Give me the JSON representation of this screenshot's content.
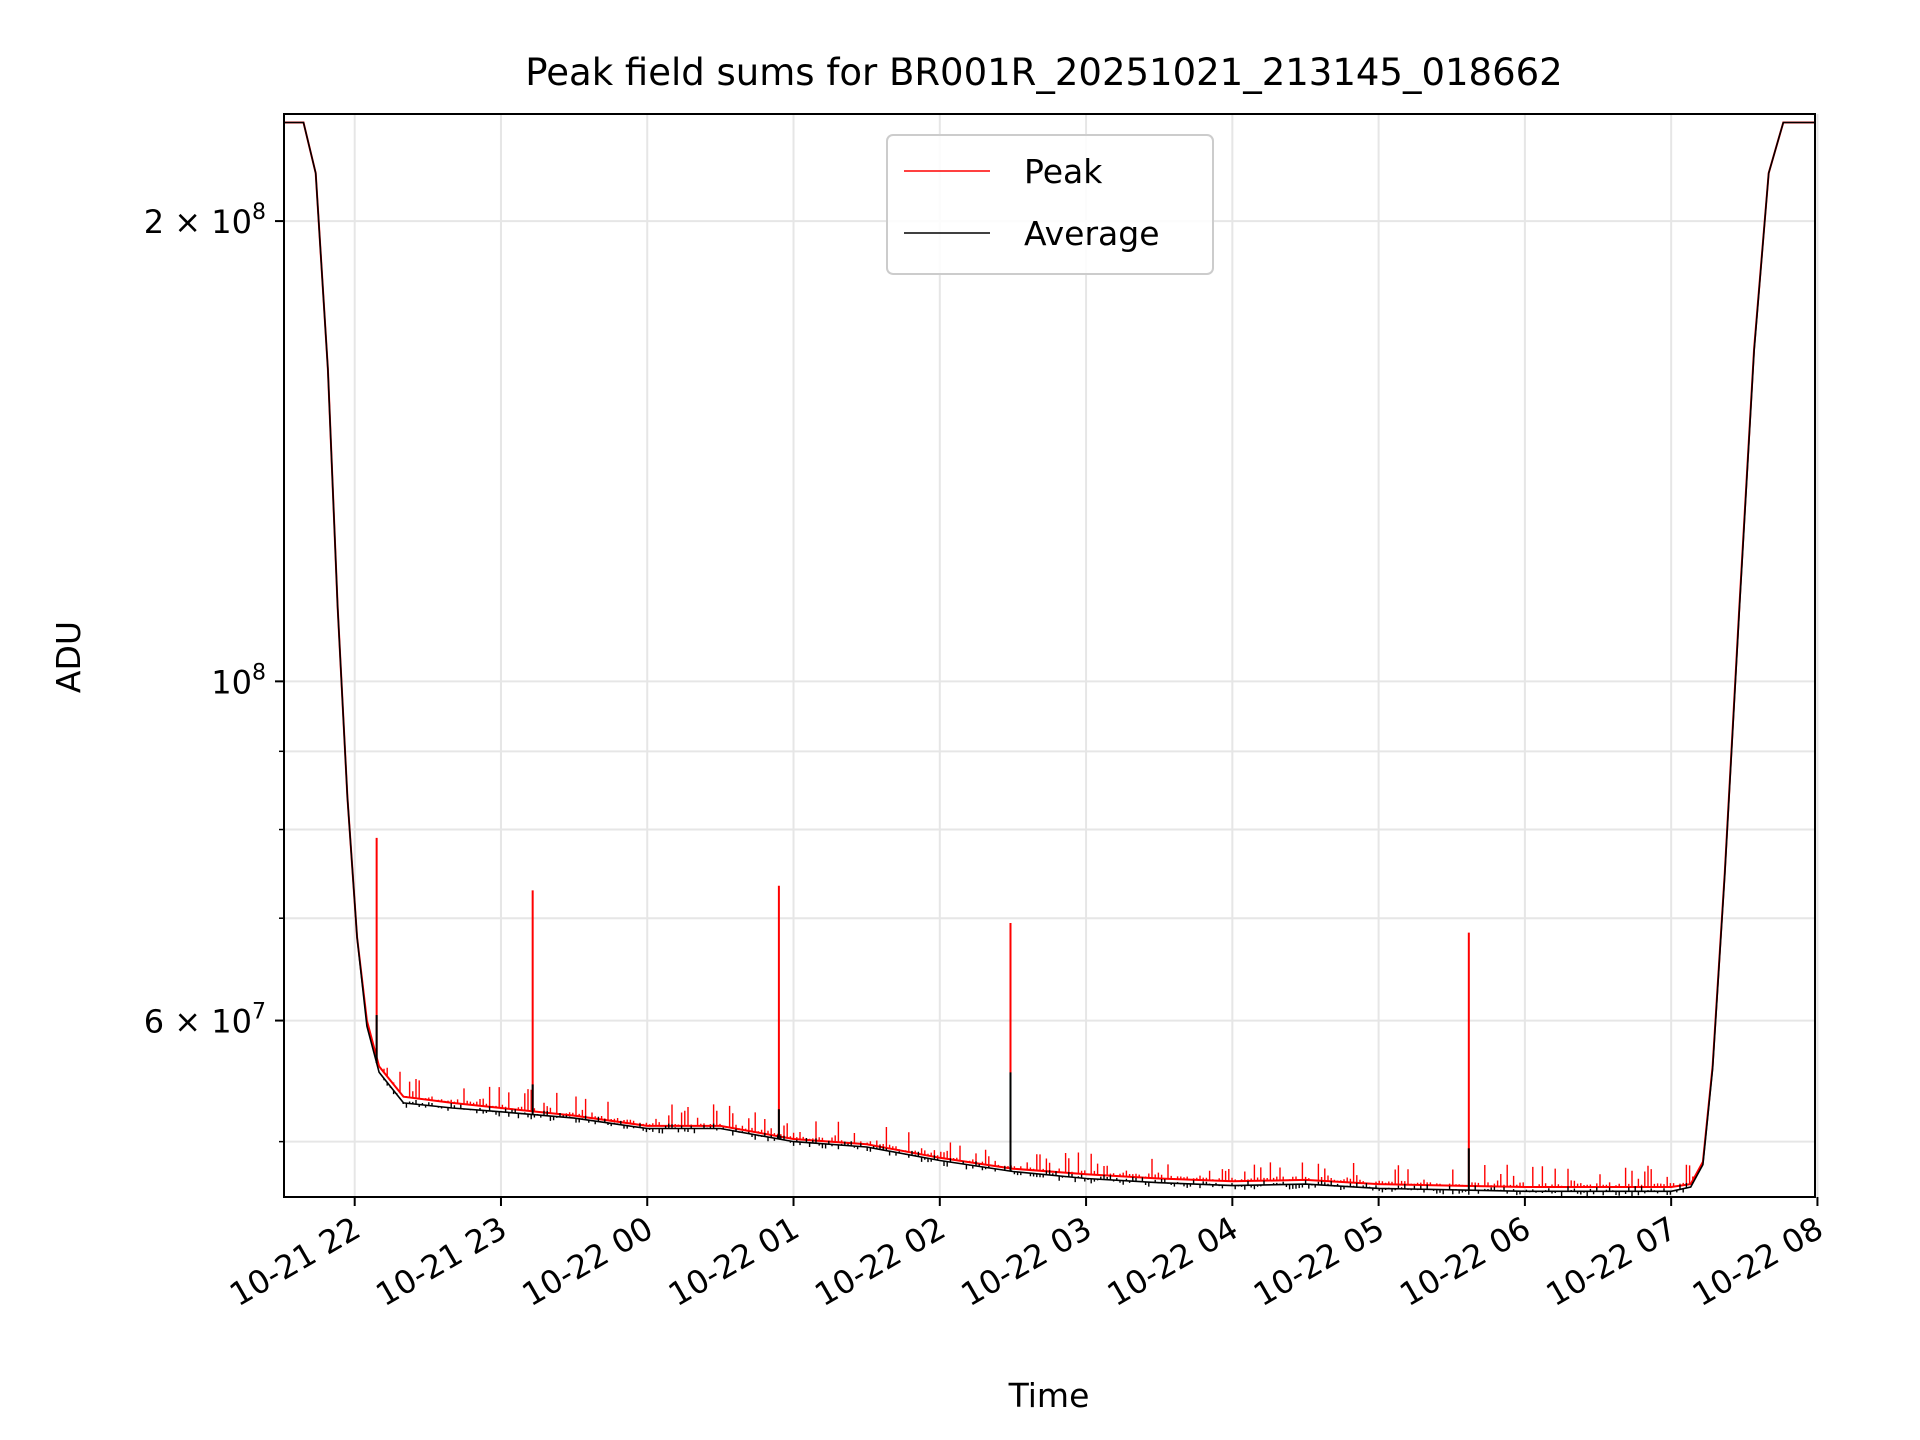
{
  "chart_data": {
    "type": "line",
    "title": "Peak field sums for BR001R_20251021_213145_018662",
    "xlabel": "Time",
    "ylabel": "ADU",
    "yscale": "log",
    "ylim": [
      46000000,
      235000000
    ],
    "xlim": [
      "2025-10-21 21:31",
      "2025-10-22 07:59"
    ],
    "grid": true,
    "legend_position": "top-center",
    "x_ticks": [
      "10-21 22",
      "10-21 23",
      "10-22 00",
      "10-22 01",
      "10-22 02",
      "10-22 03",
      "10-22 04",
      "10-22 05",
      "10-22 06",
      "10-22 07",
      "10-22 08"
    ],
    "y_ticks": [
      {
        "value": 200000000,
        "mantissa": "2",
        "times": "×",
        "base": "10",
        "exp": "8"
      },
      {
        "value": 100000000,
        "mantissa": "",
        "times": "",
        "base": "10",
        "exp": "8"
      },
      {
        "value": 60000000,
        "mantissa": "6",
        "times": "×",
        "base": "10",
        "exp": "7"
      }
    ],
    "y_minor_ticks": [
      50000000,
      70000000,
      80000000,
      90000000
    ],
    "series": [
      {
        "name": "Peak",
        "color": "#ff0000",
        "points": [
          [
            "2025-10-21 21:31",
            232000000
          ],
          [
            "2025-10-21 21:39",
            232000000
          ],
          [
            "2025-10-21 21:44",
            215000000
          ],
          [
            "2025-10-21 21:49",
            160000000
          ],
          [
            "2025-10-21 21:53",
            112000000
          ],
          [
            "2025-10-21 21:57",
            84000000
          ],
          [
            "2025-10-21 22:01",
            68000000
          ],
          [
            "2025-10-21 22:05",
            60000000
          ],
          [
            "2025-10-21 22:10",
            56000000
          ],
          [
            "2025-10-21 22:20",
            53500000
          ],
          [
            "2025-10-21 22:40",
            53000000
          ],
          [
            "2025-10-21 23:00",
            52600000
          ],
          [
            "2025-10-21 23:30",
            52000000
          ],
          [
            "2025-10-22 00:00",
            51200000
          ],
          [
            "2025-10-22 00:30",
            51200000
          ],
          [
            "2025-10-22 01:00",
            50200000
          ],
          [
            "2025-10-22 01:30",
            49800000
          ],
          [
            "2025-10-22 02:00",
            48800000
          ],
          [
            "2025-10-22 02:30",
            48000000
          ],
          [
            "2025-10-22 03:00",
            47600000
          ],
          [
            "2025-10-22 03:30",
            47300000
          ],
          [
            "2025-10-22 04:00",
            47100000
          ],
          [
            "2025-10-22 04:30",
            47200000
          ],
          [
            "2025-10-22 05:00",
            46900000
          ],
          [
            "2025-10-22 05:30",
            46800000
          ],
          [
            "2025-10-22 06:00",
            46700000
          ],
          [
            "2025-10-22 06:30",
            46700000
          ],
          [
            "2025-10-22 07:00",
            46700000
          ],
          [
            "2025-10-22 07:08",
            46900000
          ],
          [
            "2025-10-22 07:13",
            48500000
          ],
          [
            "2025-10-22 07:17",
            56000000
          ],
          [
            "2025-10-22 07:22",
            75000000
          ],
          [
            "2025-10-22 07:28",
            112000000
          ],
          [
            "2025-10-22 07:34",
            165000000
          ],
          [
            "2025-10-22 07:40",
            215000000
          ],
          [
            "2025-10-22 07:46",
            232000000
          ],
          [
            "2025-10-22 07:59",
            232000000
          ]
        ],
        "spikes": [
          [
            "2025-10-21 22:09",
            79000000
          ],
          [
            "2025-10-21 23:13",
            73000000
          ],
          [
            "2025-10-22 00:54",
            73500000
          ],
          [
            "2025-10-22 02:29",
            69500000
          ],
          [
            "2025-10-22 05:37",
            68500000
          ]
        ]
      },
      {
        "name": "Average",
        "color": "#000000",
        "points": [
          [
            "2025-10-21 21:31",
            232000000
          ],
          [
            "2025-10-21 21:39",
            232000000
          ],
          [
            "2025-10-21 21:44",
            215000000
          ],
          [
            "2025-10-21 21:49",
            160000000
          ],
          [
            "2025-10-21 21:53",
            112000000
          ],
          [
            "2025-10-21 21:57",
            84000000
          ],
          [
            "2025-10-21 22:01",
            68000000
          ],
          [
            "2025-10-21 22:05",
            59500000
          ],
          [
            "2025-10-21 22:10",
            55500000
          ],
          [
            "2025-10-21 22:20",
            53000000
          ],
          [
            "2025-10-21 22:40",
            52600000
          ],
          [
            "2025-10-21 23:00",
            52300000
          ],
          [
            "2025-10-21 23:30",
            51800000
          ],
          [
            "2025-10-22 00:00",
            51000000
          ],
          [
            "2025-10-22 00:30",
            51000000
          ],
          [
            "2025-10-22 01:00",
            50000000
          ],
          [
            "2025-10-22 01:30",
            49600000
          ],
          [
            "2025-10-22 02:00",
            48600000
          ],
          [
            "2025-10-22 02:30",
            47800000
          ],
          [
            "2025-10-22 03:00",
            47300000
          ],
          [
            "2025-10-22 03:30",
            47000000
          ],
          [
            "2025-10-22 04:00",
            46800000
          ],
          [
            "2025-10-22 04:30",
            46900000
          ],
          [
            "2025-10-22 05:00",
            46600000
          ],
          [
            "2025-10-22 05:30",
            46500000
          ],
          [
            "2025-10-22 06:00",
            46400000
          ],
          [
            "2025-10-22 06:30",
            46400000
          ],
          [
            "2025-10-22 07:00",
            46400000
          ],
          [
            "2025-10-22 07:08",
            46700000
          ],
          [
            "2025-10-22 07:13",
            48300000
          ],
          [
            "2025-10-22 07:17",
            55800000
          ],
          [
            "2025-10-22 07:22",
            74800000
          ],
          [
            "2025-10-22 07:28",
            111500000
          ],
          [
            "2025-10-22 07:34",
            164500000
          ],
          [
            "2025-10-22 07:40",
            215000000
          ],
          [
            "2025-10-22 07:46",
            232000000
          ],
          [
            "2025-10-22 07:59",
            232000000
          ]
        ],
        "spikes": [
          [
            "2025-10-21 22:09",
            60500000
          ],
          [
            "2025-10-21 23:13",
            54500000
          ],
          [
            "2025-10-22 00:54",
            52500000
          ],
          [
            "2025-10-22 02:29",
            55500000
          ],
          [
            "2025-10-22 05:37",
            49500000
          ]
        ]
      }
    ]
  }
}
